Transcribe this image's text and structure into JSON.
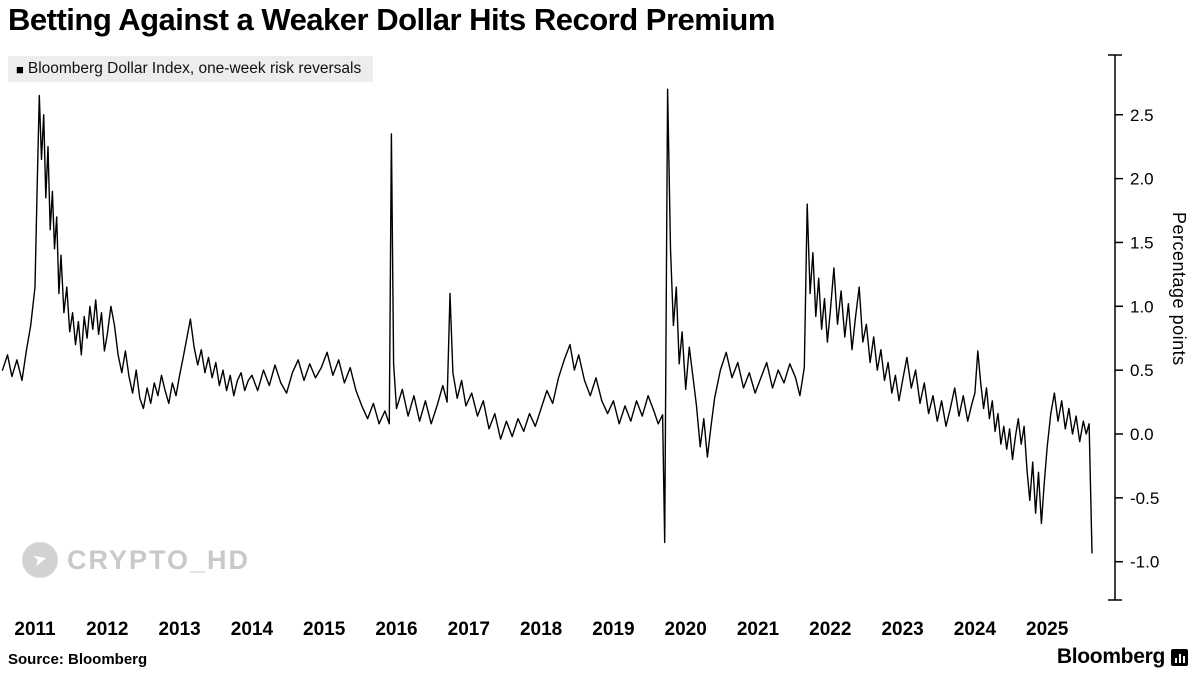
{
  "title": "Betting Against a Weaker Dollar Hits Record Premium",
  "legend": {
    "marker": "■",
    "label": "Bloomberg Dollar Index, one-week risk reversals"
  },
  "watermark": {
    "text": "CRYPTO_HD"
  },
  "footer": {
    "source": "Source: Bloomberg",
    "brand": "Bloomberg"
  },
  "chart_data": {
    "type": "line",
    "title": "Betting Against a Weaker Dollar Hits Record Premium",
    "series_name": "Bloomberg Dollar Index, one-week risk reversals",
    "ylabel": "Percentage points",
    "xlabel": "",
    "line_color": "#000000",
    "grid": false,
    "legend_position": "top-left",
    "xlim": [
      2010.55,
      2025.75
    ],
    "ylim": [
      -1.3,
      3.0
    ],
    "x_ticks": [
      2011,
      2012,
      2013,
      2014,
      2015,
      2016,
      2017,
      2018,
      2019,
      2020,
      2021,
      2022,
      2023,
      2024,
      2025
    ],
    "y_ticks": [
      2.5,
      2.0,
      1.5,
      1.0,
      0.5,
      0.0,
      -0.5,
      -1.0
    ],
    "points": [
      [
        2010.55,
        0.5
      ],
      [
        2010.62,
        0.62
      ],
      [
        2010.68,
        0.45
      ],
      [
        2010.75,
        0.58
      ],
      [
        2010.82,
        0.42
      ],
      [
        2010.88,
        0.65
      ],
      [
        2010.94,
        0.85
      ],
      [
        2011.0,
        1.15
      ],
      [
        2011.03,
        1.95
      ],
      [
        2011.06,
        2.65
      ],
      [
        2011.09,
        2.15
      ],
      [
        2011.12,
        2.5
      ],
      [
        2011.15,
        1.85
      ],
      [
        2011.18,
        2.25
      ],
      [
        2011.21,
        1.6
      ],
      [
        2011.24,
        1.9
      ],
      [
        2011.27,
        1.45
      ],
      [
        2011.3,
        1.7
      ],
      [
        2011.33,
        1.1
      ],
      [
        2011.36,
        1.4
      ],
      [
        2011.4,
        0.95
      ],
      [
        2011.44,
        1.15
      ],
      [
        2011.48,
        0.8
      ],
      [
        2011.52,
        0.95
      ],
      [
        2011.56,
        0.7
      ],
      [
        2011.6,
        0.88
      ],
      [
        2011.64,
        0.62
      ],
      [
        2011.68,
        0.92
      ],
      [
        2011.72,
        0.75
      ],
      [
        2011.76,
        1.0
      ],
      [
        2011.8,
        0.82
      ],
      [
        2011.84,
        1.05
      ],
      [
        2011.88,
        0.78
      ],
      [
        2011.92,
        0.95
      ],
      [
        2011.96,
        0.65
      ],
      [
        2012.0,
        0.78
      ],
      [
        2012.05,
        1.0
      ],
      [
        2012.1,
        0.85
      ],
      [
        2012.15,
        0.62
      ],
      [
        2012.2,
        0.48
      ],
      [
        2012.25,
        0.65
      ],
      [
        2012.3,
        0.45
      ],
      [
        2012.35,
        0.32
      ],
      [
        2012.4,
        0.5
      ],
      [
        2012.45,
        0.28
      ],
      [
        2012.5,
        0.2
      ],
      [
        2012.55,
        0.36
      ],
      [
        2012.6,
        0.24
      ],
      [
        2012.65,
        0.4
      ],
      [
        2012.7,
        0.3
      ],
      [
        2012.75,
        0.46
      ],
      [
        2012.8,
        0.34
      ],
      [
        2012.85,
        0.24
      ],
      [
        2012.9,
        0.4
      ],
      [
        2012.95,
        0.3
      ],
      [
        2013.0,
        0.46
      ],
      [
        2013.05,
        0.6
      ],
      [
        2013.1,
        0.75
      ],
      [
        2013.15,
        0.9
      ],
      [
        2013.2,
        0.68
      ],
      [
        2013.25,
        0.54
      ],
      [
        2013.3,
        0.66
      ],
      [
        2013.35,
        0.48
      ],
      [
        2013.4,
        0.6
      ],
      [
        2013.45,
        0.44
      ],
      [
        2013.5,
        0.56
      ],
      [
        2013.55,
        0.38
      ],
      [
        2013.6,
        0.5
      ],
      [
        2013.65,
        0.34
      ],
      [
        2013.7,
        0.46
      ],
      [
        2013.75,
        0.3
      ],
      [
        2013.8,
        0.42
      ],
      [
        2013.85,
        0.48
      ],
      [
        2013.9,
        0.34
      ],
      [
        2013.95,
        0.42
      ],
      [
        2014.0,
        0.46
      ],
      [
        2014.08,
        0.34
      ],
      [
        2014.16,
        0.5
      ],
      [
        2014.24,
        0.38
      ],
      [
        2014.32,
        0.54
      ],
      [
        2014.4,
        0.4
      ],
      [
        2014.48,
        0.32
      ],
      [
        2014.56,
        0.48
      ],
      [
        2014.64,
        0.58
      ],
      [
        2014.72,
        0.42
      ],
      [
        2014.8,
        0.55
      ],
      [
        2014.88,
        0.44
      ],
      [
        2014.96,
        0.52
      ],
      [
        2015.04,
        0.64
      ],
      [
        2015.12,
        0.46
      ],
      [
        2015.2,
        0.58
      ],
      [
        2015.28,
        0.4
      ],
      [
        2015.36,
        0.52
      ],
      [
        2015.44,
        0.34
      ],
      [
        2015.52,
        0.22
      ],
      [
        2015.6,
        0.12
      ],
      [
        2015.68,
        0.24
      ],
      [
        2015.76,
        0.08
      ],
      [
        2015.84,
        0.18
      ],
      [
        2015.9,
        0.08
      ],
      [
        2015.93,
        2.35
      ],
      [
        2015.96,
        0.55
      ],
      [
        2016.0,
        0.2
      ],
      [
        2016.08,
        0.35
      ],
      [
        2016.16,
        0.14
      ],
      [
        2016.24,
        0.3
      ],
      [
        2016.32,
        0.1
      ],
      [
        2016.4,
        0.26
      ],
      [
        2016.48,
        0.08
      ],
      [
        2016.56,
        0.22
      ],
      [
        2016.64,
        0.38
      ],
      [
        2016.7,
        0.25
      ],
      [
        2016.74,
        1.1
      ],
      [
        2016.78,
        0.48
      ],
      [
        2016.84,
        0.28
      ],
      [
        2016.9,
        0.42
      ],
      [
        2016.96,
        0.22
      ],
      [
        2017.04,
        0.32
      ],
      [
        2017.12,
        0.14
      ],
      [
        2017.2,
        0.26
      ],
      [
        2017.28,
        0.04
      ],
      [
        2017.36,
        0.16
      ],
      [
        2017.44,
        -0.04
      ],
      [
        2017.52,
        0.1
      ],
      [
        2017.6,
        -0.02
      ],
      [
        2017.68,
        0.12
      ],
      [
        2017.76,
        0.02
      ],
      [
        2017.84,
        0.16
      ],
      [
        2017.92,
        0.06
      ],
      [
        2018.0,
        0.2
      ],
      [
        2018.08,
        0.34
      ],
      [
        2018.16,
        0.24
      ],
      [
        2018.24,
        0.44
      ],
      [
        2018.32,
        0.58
      ],
      [
        2018.4,
        0.7
      ],
      [
        2018.46,
        0.5
      ],
      [
        2018.52,
        0.62
      ],
      [
        2018.6,
        0.42
      ],
      [
        2018.68,
        0.3
      ],
      [
        2018.76,
        0.44
      ],
      [
        2018.84,
        0.26
      ],
      [
        2018.92,
        0.16
      ],
      [
        2019.0,
        0.26
      ],
      [
        2019.08,
        0.08
      ],
      [
        2019.16,
        0.22
      ],
      [
        2019.24,
        0.1
      ],
      [
        2019.32,
        0.26
      ],
      [
        2019.4,
        0.14
      ],
      [
        2019.48,
        0.3
      ],
      [
        2019.56,
        0.18
      ],
      [
        2019.62,
        0.08
      ],
      [
        2019.68,
        0.15
      ],
      [
        2019.71,
        -0.85
      ],
      [
        2019.75,
        2.7
      ],
      [
        2019.79,
        1.45
      ],
      [
        2019.83,
        0.85
      ],
      [
        2019.87,
        1.15
      ],
      [
        2019.91,
        0.55
      ],
      [
        2019.95,
        0.8
      ],
      [
        2020.0,
        0.35
      ],
      [
        2020.05,
        0.68
      ],
      [
        2020.1,
        0.45
      ],
      [
        2020.15,
        0.22
      ],
      [
        2020.2,
        -0.1
      ],
      [
        2020.25,
        0.12
      ],
      [
        2020.3,
        -0.18
      ],
      [
        2020.35,
        0.06
      ],
      [
        2020.4,
        0.28
      ],
      [
        2020.48,
        0.5
      ],
      [
        2020.56,
        0.64
      ],
      [
        2020.64,
        0.44
      ],
      [
        2020.72,
        0.56
      ],
      [
        2020.8,
        0.36
      ],
      [
        2020.88,
        0.48
      ],
      [
        2020.96,
        0.32
      ],
      [
        2021.04,
        0.44
      ],
      [
        2021.12,
        0.56
      ],
      [
        2021.2,
        0.36
      ],
      [
        2021.28,
        0.5
      ],
      [
        2021.36,
        0.4
      ],
      [
        2021.44,
        0.55
      ],
      [
        2021.52,
        0.44
      ],
      [
        2021.58,
        0.3
      ],
      [
        2021.64,
        0.52
      ],
      [
        2021.68,
        1.8
      ],
      [
        2021.72,
        1.1
      ],
      [
        2021.76,
        1.42
      ],
      [
        2021.8,
        0.92
      ],
      [
        2021.84,
        1.22
      ],
      [
        2021.88,
        0.82
      ],
      [
        2021.92,
        1.06
      ],
      [
        2021.96,
        0.72
      ],
      [
        2022.0,
        0.96
      ],
      [
        2022.05,
        1.3
      ],
      [
        2022.1,
        0.86
      ],
      [
        2022.15,
        1.12
      ],
      [
        2022.2,
        0.76
      ],
      [
        2022.25,
        1.02
      ],
      [
        2022.3,
        0.66
      ],
      [
        2022.35,
        0.92
      ],
      [
        2022.4,
        1.15
      ],
      [
        2022.45,
        0.72
      ],
      [
        2022.5,
        0.86
      ],
      [
        2022.55,
        0.56
      ],
      [
        2022.6,
        0.76
      ],
      [
        2022.65,
        0.5
      ],
      [
        2022.7,
        0.66
      ],
      [
        2022.75,
        0.42
      ],
      [
        2022.8,
        0.56
      ],
      [
        2022.85,
        0.32
      ],
      [
        2022.9,
        0.46
      ],
      [
        2022.95,
        0.26
      ],
      [
        2023.0,
        0.42
      ],
      [
        2023.06,
        0.6
      ],
      [
        2023.12,
        0.36
      ],
      [
        2023.18,
        0.5
      ],
      [
        2023.24,
        0.24
      ],
      [
        2023.3,
        0.4
      ],
      [
        2023.36,
        0.16
      ],
      [
        2023.42,
        0.3
      ],
      [
        2023.48,
        0.1
      ],
      [
        2023.54,
        0.26
      ],
      [
        2023.6,
        0.06
      ],
      [
        2023.66,
        0.2
      ],
      [
        2023.72,
        0.36
      ],
      [
        2023.78,
        0.14
      ],
      [
        2023.84,
        0.3
      ],
      [
        2023.9,
        0.1
      ],
      [
        2023.96,
        0.24
      ],
      [
        2024.0,
        0.32
      ],
      [
        2024.04,
        0.65
      ],
      [
        2024.08,
        0.4
      ],
      [
        2024.12,
        0.2
      ],
      [
        2024.16,
        0.36
      ],
      [
        2024.2,
        0.12
      ],
      [
        2024.24,
        0.26
      ],
      [
        2024.28,
        0.02
      ],
      [
        2024.32,
        0.16
      ],
      [
        2024.36,
        -0.08
      ],
      [
        2024.4,
        0.06
      ],
      [
        2024.44,
        -0.12
      ],
      [
        2024.48,
        0.04
      ],
      [
        2024.52,
        -0.2
      ],
      [
        2024.56,
        -0.02
      ],
      [
        2024.6,
        0.12
      ],
      [
        2024.64,
        -0.08
      ],
      [
        2024.68,
        0.06
      ],
      [
        2024.72,
        -0.28
      ],
      [
        2024.76,
        -0.52
      ],
      [
        2024.8,
        -0.22
      ],
      [
        2024.84,
        -0.62
      ],
      [
        2024.88,
        -0.3
      ],
      [
        2024.92,
        -0.7
      ],
      [
        2024.96,
        -0.38
      ],
      [
        2025.0,
        -0.1
      ],
      [
        2025.05,
        0.16
      ],
      [
        2025.1,
        0.32
      ],
      [
        2025.15,
        0.1
      ],
      [
        2025.2,
        0.26
      ],
      [
        2025.25,
        0.04
      ],
      [
        2025.3,
        0.2
      ],
      [
        2025.35,
        0.0
      ],
      [
        2025.4,
        0.14
      ],
      [
        2025.45,
        -0.06
      ],
      [
        2025.5,
        0.1
      ],
      [
        2025.54,
        0.0
      ],
      [
        2025.58,
        0.08
      ],
      [
        2025.62,
        -0.93
      ]
    ]
  }
}
